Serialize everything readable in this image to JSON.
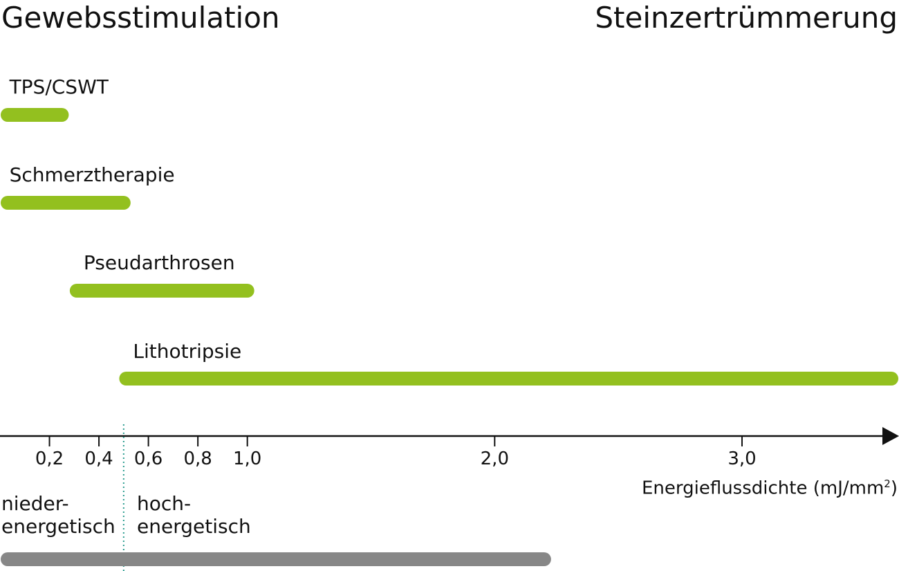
{
  "header": {
    "left_title": "Gewebsstimulation",
    "right_title": "Steinzertrümmerung"
  },
  "chart_data": {
    "type": "bar",
    "orientation": "horizontal-range",
    "title": "",
    "xlabel": "Energieflussdichte (mJ/mm",
    "xlabel_superscript": "2",
    "xlabel_suffix": ")",
    "xlim": [
      0,
      3.55
    ],
    "x_ticks": [
      0.2,
      0.4,
      0.6,
      0.8,
      1.0,
      2.0,
      3.0
    ],
    "x_tick_labels": [
      "0,2",
      "0,4",
      "0,6",
      "0,8",
      "1,0",
      "2,0",
      "3,0"
    ],
    "bars": [
      {
        "label": "TPS/CSWT",
        "start": 0.01,
        "end": 0.25
      },
      {
        "label": "Schmerztherapie",
        "start": 0.01,
        "end": 0.5
      },
      {
        "label": "Pseudarthrosen",
        "start": 0.31,
        "end": 1.0
      },
      {
        "label": "Lithotripsie",
        "start": 0.51,
        "end": 3.65
      }
    ],
    "threshold": 0.5,
    "zones": {
      "low_label": "nieder-\nenergetisch",
      "high_label": "hoch-\nenergetisch"
    },
    "bottom_range": {
      "start": 0.01,
      "end": 2.2
    },
    "colors": {
      "bars": "#93c01f",
      "threshold": "#2a9d8f",
      "bottom_range": "#878787",
      "axis": "#111111"
    }
  }
}
